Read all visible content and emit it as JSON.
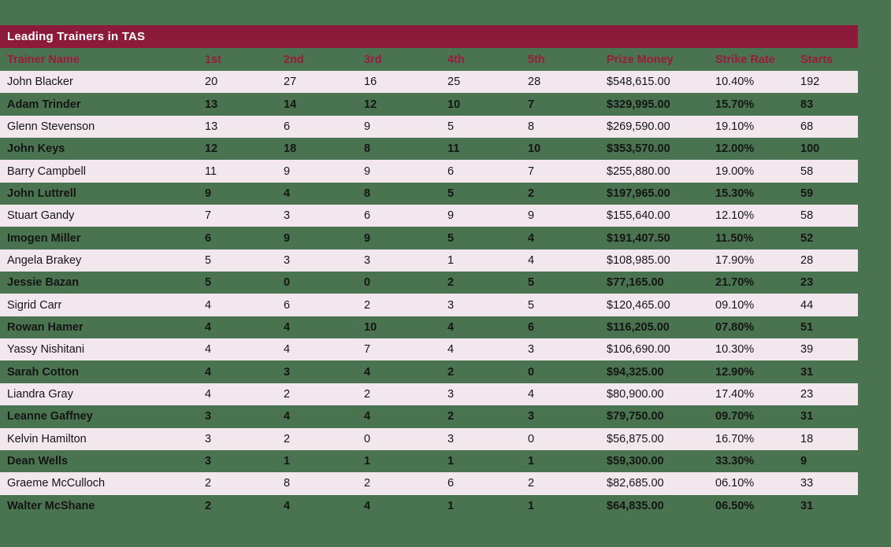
{
  "page_title": "Leading Trainers in TAS",
  "colors": {
    "background_green": "#4A7350",
    "title_bar_maroon": "#8C1A3B",
    "header_text_red": "#9B1B3D",
    "row_stripe_pink": "#F2E7ED",
    "row_text": "#151515",
    "title_text": "#FFFFFF"
  },
  "chart_data": {
    "type": "table",
    "title": "Leading Trainers in TAS",
    "columns": [
      "Trainer Name",
      "1st",
      "2nd",
      "3rd",
      "4th",
      "5th",
      "Prize Money",
      "Strike Rate",
      "Starts"
    ],
    "rows": [
      [
        "John Blacker",
        "20",
        "27",
        "16",
        "25",
        "28",
        "$548,615.00",
        "10.40%",
        "192"
      ],
      [
        "Adam Trinder",
        "13",
        "14",
        "12",
        "10",
        "7",
        "$329,995.00",
        "15.70%",
        "83"
      ],
      [
        "Glenn Stevenson",
        "13",
        "6",
        "9",
        "5",
        "8",
        "$269,590.00",
        "19.10%",
        "68"
      ],
      [
        "John Keys",
        "12",
        "18",
        "8",
        "11",
        "10",
        "$353,570.00",
        "12.00%",
        "100"
      ],
      [
        "Barry Campbell",
        "11",
        "9",
        "9",
        "6",
        "7",
        "$255,880.00",
        "19.00%",
        "58"
      ],
      [
        "John Luttrell",
        "9",
        "4",
        "8",
        "5",
        "2",
        "$197,965.00",
        "15.30%",
        "59"
      ],
      [
        "Stuart Gandy",
        "7",
        "3",
        "6",
        "9",
        "9",
        "$155,640.00",
        "12.10%",
        "58"
      ],
      [
        "Imogen Miller",
        "6",
        "9",
        "9",
        "5",
        "4",
        "$191,407.50",
        "11.50%",
        "52"
      ],
      [
        "Angela Brakey",
        "5",
        "3",
        "3",
        "1",
        "4",
        "$108,985.00",
        "17.90%",
        "28"
      ],
      [
        "Jessie Bazan",
        "5",
        "0",
        "0",
        "2",
        "5",
        "$77,165.00",
        "21.70%",
        "23"
      ],
      [
        "Sigrid Carr",
        "4",
        "6",
        "2",
        "3",
        "5",
        "$120,465.00",
        "09.10%",
        "44"
      ],
      [
        "Rowan Hamer",
        "4",
        "4",
        "10",
        "4",
        "6",
        "$116,205.00",
        "07.80%",
        "51"
      ],
      [
        "Yassy Nishitani",
        "4",
        "4",
        "7",
        "4",
        "3",
        "$106,690.00",
        "10.30%",
        "39"
      ],
      [
        "Sarah Cotton",
        "4",
        "3",
        "4",
        "2",
        "0",
        "$94,325.00",
        "12.90%",
        "31"
      ],
      [
        "Liandra Gray",
        "4",
        "2",
        "2",
        "3",
        "4",
        "$80,900.00",
        "17.40%",
        "23"
      ],
      [
        "Leanne Gaffney",
        "3",
        "4",
        "4",
        "2",
        "3",
        "$79,750.00",
        "09.70%",
        "31"
      ],
      [
        "Kelvin Hamilton",
        "3",
        "2",
        "0",
        "3",
        "0",
        "$56,875.00",
        "16.70%",
        "18"
      ],
      [
        "Dean Wells",
        "3",
        "1",
        "1",
        "1",
        "1",
        "$59,300.00",
        "33.30%",
        "9"
      ],
      [
        "Graeme McCulloch",
        "2",
        "8",
        "2",
        "6",
        "2",
        "$82,685.00",
        "06.10%",
        "33"
      ],
      [
        "Walter McShane",
        "2",
        "4",
        "4",
        "1",
        "1",
        "$64,835.00",
        "06.50%",
        "31"
      ]
    ]
  }
}
